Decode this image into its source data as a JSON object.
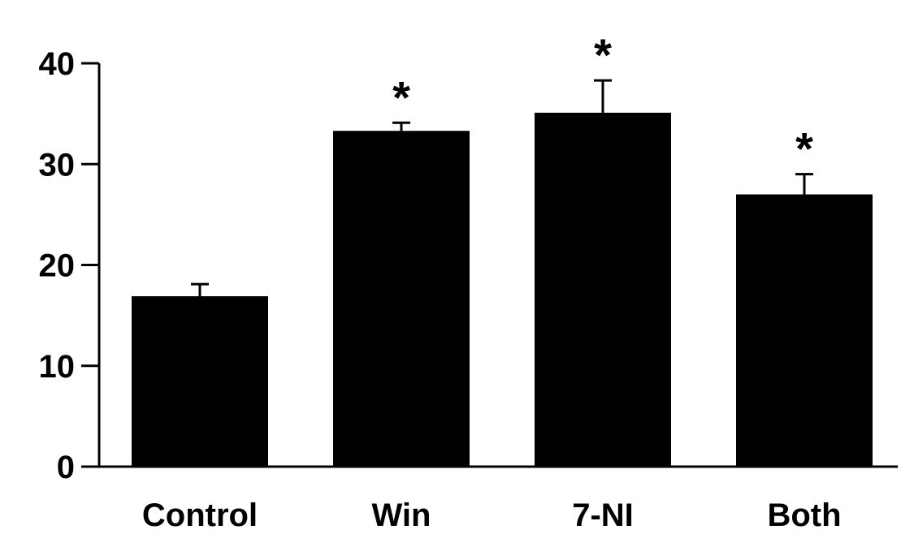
{
  "chart_data": {
    "type": "bar",
    "title": "",
    "xlabel": "",
    "ylabel": "",
    "categories": [
      "Control",
      "Win",
      "7-NI",
      "Both"
    ],
    "values": [
      16.9,
      33.3,
      35.1,
      27.0
    ],
    "errors": [
      1.2,
      0.8,
      3.2,
      2.0
    ],
    "annotations": [
      "",
      "*",
      "*",
      "*"
    ],
    "ylim": [
      0,
      40
    ],
    "yticks": [
      0,
      10,
      20,
      30,
      40
    ],
    "ytick_labels": [
      "0",
      "10",
      "20",
      "30",
      "40"
    ],
    "grid": false,
    "bar_color": "#000000"
  }
}
